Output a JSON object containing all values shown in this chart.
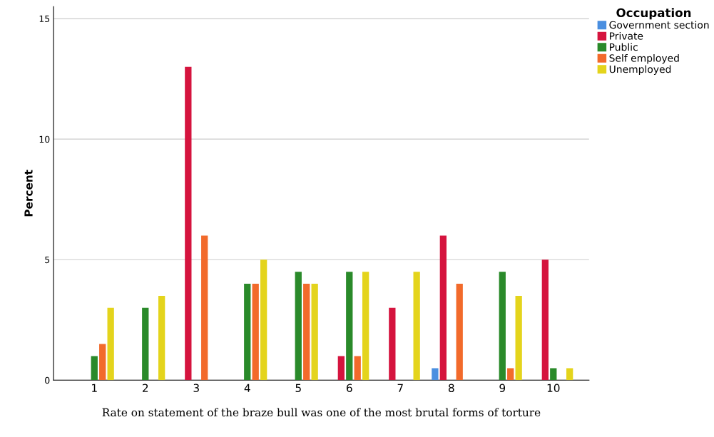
{
  "chart_data": {
    "type": "bar",
    "xlabel": "Rate on statement of the braze bull was one of the most brutal forms of torture",
    "ylabel": "Percent",
    "legend_title": "Occupation",
    "legend": "top right",
    "categories": [
      "1",
      "2",
      "3",
      "4",
      "5",
      "6",
      "7",
      "8",
      "9",
      "10"
    ],
    "series": [
      {
        "name": "Government section",
        "color": "#4a8fe0",
        "values": [
          null,
          null,
          null,
          null,
          null,
          null,
          null,
          0.5,
          null,
          null
        ]
      },
      {
        "name": "Private",
        "color": "#d5143e",
        "values": [
          null,
          null,
          13,
          null,
          null,
          1,
          3,
          6,
          null,
          5
        ]
      },
      {
        "name": "Public",
        "color": "#2a8a2a",
        "values": [
          1,
          3,
          null,
          4,
          4.5,
          4.5,
          null,
          null,
          4.5,
          0.5
        ]
      },
      {
        "name": "Self employed",
        "color": "#f26a2b",
        "values": [
          1.5,
          null,
          6,
          4,
          4,
          1,
          null,
          4,
          0.5,
          null
        ]
      },
      {
        "name": "Unemployed",
        "color": "#e4d41c",
        "values": [
          3,
          3.5,
          null,
          5,
          4,
          4.5,
          4.5,
          null,
          3.5,
          0.5
        ]
      }
    ],
    "ylim": [
      0,
      15.5
    ],
    "yticks": [
      0,
      5,
      10,
      15
    ],
    "grid": "y"
  }
}
